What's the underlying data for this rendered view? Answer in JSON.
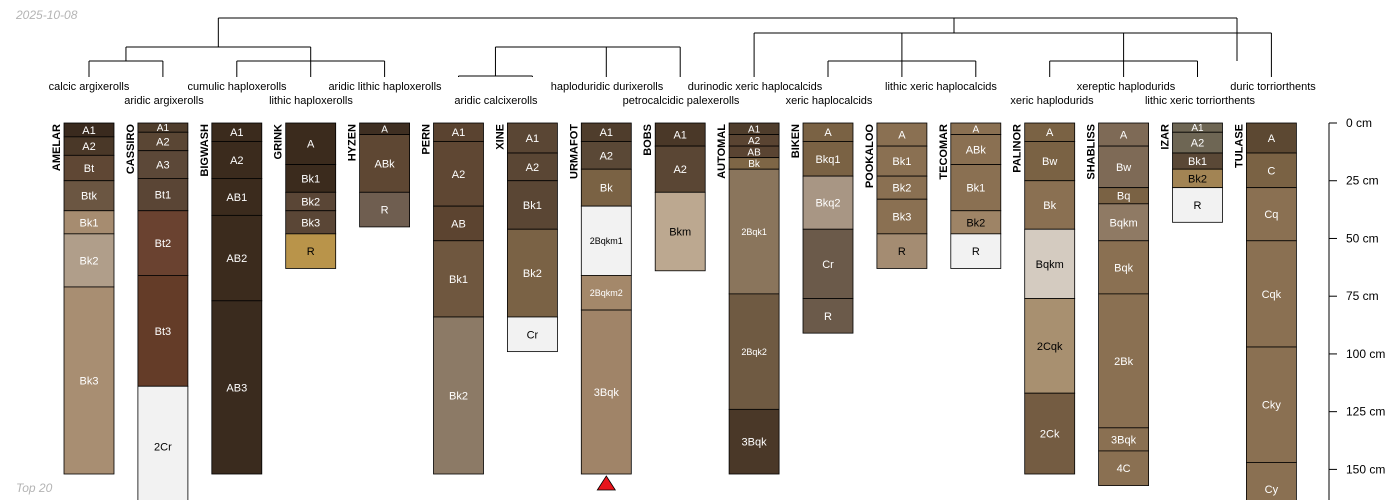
{
  "header": {
    "date": "2025-10-08"
  },
  "footer": {
    "label": "Top 20"
  },
  "depth_axis": {
    "unit": "cm",
    "range": [
      0,
      160
    ],
    "ticks": [
      {
        "value": 0,
        "label": "0 cm"
      },
      {
        "value": 25,
        "label": "25 cm"
      },
      {
        "value": 50,
        "label": "50 cm"
      },
      {
        "value": 75,
        "label": "75 cm"
      },
      {
        "value": 100,
        "label": "100 cm"
      },
      {
        "value": 125,
        "label": "125 cm"
      },
      {
        "value": 150,
        "label": "150 cm"
      }
    ]
  },
  "marker": {
    "profile": "URMAFOT",
    "shape": "triangle",
    "color": "#e8141b"
  },
  "classes": [
    {
      "label": "calcic argixerolls",
      "row": 1
    },
    {
      "label": "aridic argixerolls",
      "row": 2
    },
    {
      "label": "cumulic haploxerolls",
      "row": 1
    },
    {
      "label": "lithic haploxerolls",
      "row": 2
    },
    {
      "label": "aridic lithic haploxerolls",
      "row": 1
    },
    {
      "label": "aridic calcixerolls",
      "row": 2
    },
    {
      "label": "haploduridic durixerolls",
      "row": 1
    },
    {
      "label": "petrocalcidic palexerolls",
      "row": 2
    },
    {
      "label": "durinodic xeric haplocalcids",
      "row": 1
    },
    {
      "label": "xeric haplocalcids",
      "row": 2
    },
    {
      "label": "lithic xeric haplocalcids",
      "row": 1
    },
    {
      "label": "xeric haplodurids",
      "row": 2
    },
    {
      "label": "xereptic haplodurids",
      "row": 1
    },
    {
      "label": "lithic xeric torriorthents",
      "row": 2
    },
    {
      "label": "duric torriorthents",
      "row": 1
    }
  ],
  "profiles": [
    {
      "id": "AMELAR",
      "horizons": [
        {
          "name": "A1",
          "top": 0,
          "bottom": 6,
          "color": "#3a2a1e",
          "text": "#ffffff"
        },
        {
          "name": "A2",
          "top": 6,
          "bottom": 14,
          "color": "#4a3828",
          "text": "#ffffff"
        },
        {
          "name": "Bt",
          "top": 14,
          "bottom": 25,
          "color": "#5f4734",
          "text": "#ffffff"
        },
        {
          "name": "Btk",
          "top": 25,
          "bottom": 38,
          "color": "#6b5642",
          "text": "#ffffff"
        },
        {
          "name": "Bk1",
          "top": 38,
          "bottom": 48,
          "color": "#a68c70",
          "text": "#ffffff"
        },
        {
          "name": "Bk2",
          "top": 48,
          "bottom": 71,
          "color": "#b09e8a",
          "text": "#ffffff"
        },
        {
          "name": "Bk3",
          "top": 71,
          "bottom": 152,
          "color": "#a88e72",
          "text": "#ffffff"
        }
      ]
    },
    {
      "id": "CASSIRO",
      "horizons": [
        {
          "name": "A1",
          "top": 0,
          "bottom": 4,
          "color": "#4f3d2c",
          "text": "#ffffff"
        },
        {
          "name": "A2",
          "top": 4,
          "bottom": 12,
          "color": "#5a4634",
          "text": "#ffffff"
        },
        {
          "name": "A3",
          "top": 12,
          "bottom": 24,
          "color": "#5c4838",
          "text": "#ffffff"
        },
        {
          "name": "Bt1",
          "top": 24,
          "bottom": 38,
          "color": "#5a4535",
          "text": "#ffffff"
        },
        {
          "name": "Bt2",
          "top": 38,
          "bottom": 66,
          "color": "#6a4230",
          "text": "#ffffff"
        },
        {
          "name": "Bt3",
          "top": 66,
          "bottom": 114,
          "color": "#643c28",
          "text": "#ffffff"
        },
        {
          "name": "2Cr",
          "top": 114,
          "bottom": 166,
          "color": "#f2f2f2",
          "text": "#000000"
        }
      ]
    },
    {
      "id": "BIGWASH",
      "horizons": [
        {
          "name": "A1",
          "top": 0,
          "bottom": 8,
          "color": "#3b2b1d",
          "text": "#ffffff"
        },
        {
          "name": "A2",
          "top": 8,
          "bottom": 24,
          "color": "#3b2b1d",
          "text": "#ffffff"
        },
        {
          "name": "AB1",
          "top": 24,
          "bottom": 40,
          "color": "#3b2b1d",
          "text": "#ffffff"
        },
        {
          "name": "AB2",
          "top": 40,
          "bottom": 77,
          "color": "#3b2b1d",
          "text": "#ffffff"
        },
        {
          "name": "AB3",
          "top": 77,
          "bottom": 152,
          "color": "#3a2b1e",
          "text": "#ffffff"
        }
      ]
    },
    {
      "id": "GRINK",
      "horizons": [
        {
          "name": "A",
          "top": 0,
          "bottom": 18,
          "color": "#3b2b1d",
          "text": "#ffffff"
        },
        {
          "name": "Bk1",
          "top": 18,
          "bottom": 30,
          "color": "#3b2b1d",
          "text": "#ffffff"
        },
        {
          "name": "Bk2",
          "top": 30,
          "bottom": 38,
          "color": "#5a4636",
          "text": "#ffffff"
        },
        {
          "name": "Bk3",
          "top": 38,
          "bottom": 48,
          "color": "#5a4636",
          "text": "#ffffff"
        },
        {
          "name": "R",
          "top": 48,
          "bottom": 63,
          "color": "#b9944a",
          "text": "#000000"
        }
      ]
    },
    {
      "id": "HYZEN",
      "horizons": [
        {
          "name": "A",
          "top": 0,
          "bottom": 5,
          "color": "#3f2f22",
          "text": "#ffffff"
        },
        {
          "name": "ABk",
          "top": 5,
          "bottom": 30,
          "color": "#5e4733",
          "text": "#ffffff"
        },
        {
          "name": "R",
          "top": 30,
          "bottom": 45,
          "color": "#6f5e50",
          "text": "#ffffff"
        }
      ]
    },
    {
      "id": "PERN",
      "horizons": [
        {
          "name": "A1",
          "top": 0,
          "bottom": 8,
          "color": "#5a4330",
          "text": "#ffffff"
        },
        {
          "name": "A2",
          "top": 8,
          "bottom": 36,
          "color": "#5f4733",
          "text": "#ffffff"
        },
        {
          "name": "AB",
          "top": 36,
          "bottom": 51,
          "color": "#5c4430",
          "text": "#ffffff"
        },
        {
          "name": "Bk1",
          "top": 51,
          "bottom": 84,
          "color": "#6f573f",
          "text": "#ffffff"
        },
        {
          "name": "Bk2",
          "top": 84,
          "bottom": 152,
          "color": "#8c7a66",
          "text": "#ffffff"
        }
      ]
    },
    {
      "id": "XINE",
      "horizons": [
        {
          "name": "A1",
          "top": 0,
          "bottom": 13,
          "color": "#5a4634",
          "text": "#ffffff"
        },
        {
          "name": "A2",
          "top": 13,
          "bottom": 25,
          "color": "#5a4634",
          "text": "#ffffff"
        },
        {
          "name": "Bk1",
          "top": 25,
          "bottom": 46,
          "color": "#5a4634",
          "text": "#ffffff"
        },
        {
          "name": "Bk2",
          "top": 46,
          "bottom": 84,
          "color": "#7a6245",
          "text": "#ffffff"
        },
        {
          "name": "Cr",
          "top": 84,
          "bottom": 99,
          "color": "#f2f2f2",
          "text": "#000000"
        }
      ]
    },
    {
      "id": "URMAFOT",
      "horizons": [
        {
          "name": "A1",
          "top": 0,
          "bottom": 8,
          "color": "#4f3d2c",
          "text": "#ffffff"
        },
        {
          "name": "A2",
          "top": 8,
          "bottom": 20,
          "color": "#5a4836",
          "text": "#ffffff"
        },
        {
          "name": "Bk",
          "top": 20,
          "bottom": 36,
          "color": "#7a6244",
          "text": "#ffffff"
        },
        {
          "name": "2Bqkm1",
          "top": 36,
          "bottom": 66,
          "color": "#f2f2f2",
          "text": "#000000"
        },
        {
          "name": "2Bqkm2",
          "top": 66,
          "bottom": 81,
          "color": "#a4886a",
          "text": "#ffffff"
        },
        {
          "name": "3Bqk",
          "top": 81,
          "bottom": 152,
          "color": "#a08468",
          "text": "#ffffff"
        }
      ]
    },
    {
      "id": "BOBS",
      "horizons": [
        {
          "name": "A1",
          "top": 0,
          "bottom": 10,
          "color": "#4a3828",
          "text": "#ffffff"
        },
        {
          "name": "A2",
          "top": 10,
          "bottom": 30,
          "color": "#5a4634",
          "text": "#ffffff"
        },
        {
          "name": "Bkm",
          "top": 30,
          "bottom": 64,
          "color": "#bca890",
          "text": "#000000"
        }
      ]
    },
    {
      "id": "AUTOMAL",
      "horizons": [
        {
          "name": "A1",
          "top": 0,
          "bottom": 5,
          "color": "#4f3d2c",
          "text": "#ffffff"
        },
        {
          "name": "A2",
          "top": 5,
          "bottom": 10,
          "color": "#5a4432",
          "text": "#ffffff"
        },
        {
          "name": "AB",
          "top": 10,
          "bottom": 15,
          "color": "#5a4432",
          "text": "#ffffff"
        },
        {
          "name": "Bk",
          "top": 15,
          "bottom": 20,
          "color": "#7e6646",
          "text": "#ffffff"
        },
        {
          "name": "2Bqk1",
          "top": 20,
          "bottom": 74,
          "color": "#8a755c",
          "text": "#ffffff"
        },
        {
          "name": "2Bqk2",
          "top": 74,
          "bottom": 124,
          "color": "#6f5a42",
          "text": "#ffffff"
        },
        {
          "name": "3Bqk",
          "top": 124,
          "bottom": 152,
          "color": "#4a3828",
          "text": "#ffffff"
        }
      ]
    },
    {
      "id": "BIKEN",
      "horizons": [
        {
          "name": "A",
          "top": 0,
          "bottom": 8,
          "color": "#7a6244",
          "text": "#ffffff"
        },
        {
          "name": "Bkq1",
          "top": 8,
          "bottom": 23,
          "color": "#7a6244",
          "text": "#ffffff"
        },
        {
          "name": "Bkq2",
          "top": 23,
          "bottom": 46,
          "color": "#a89684",
          "text": "#ffffff"
        },
        {
          "name": "Cr",
          "top": 46,
          "bottom": 76,
          "color": "#6b5a4a",
          "text": "#ffffff"
        },
        {
          "name": "R",
          "top": 76,
          "bottom": 91,
          "color": "#6b5a4a",
          "text": "#ffffff"
        }
      ]
    },
    {
      "id": "POOKALOO",
      "horizons": [
        {
          "name": "A",
          "top": 0,
          "bottom": 10,
          "color": "#8a7052",
          "text": "#ffffff"
        },
        {
          "name": "Bk1",
          "top": 10,
          "bottom": 23,
          "color": "#8a7052",
          "text": "#ffffff"
        },
        {
          "name": "Bk2",
          "top": 23,
          "bottom": 33,
          "color": "#8a7052",
          "text": "#ffffff"
        },
        {
          "name": "Bk3",
          "top": 33,
          "bottom": 48,
          "color": "#8a7052",
          "text": "#ffffff"
        },
        {
          "name": "R",
          "top": 48,
          "bottom": 63,
          "color": "#a48c72",
          "text": "#000000"
        }
      ]
    },
    {
      "id": "TECOMAR",
      "horizons": [
        {
          "name": "A",
          "top": 0,
          "bottom": 5,
          "color": "#8a7052",
          "text": "#ffffff"
        },
        {
          "name": "ABk",
          "top": 5,
          "bottom": 18,
          "color": "#8a7052",
          "text": "#ffffff"
        },
        {
          "name": "Bk1",
          "top": 18,
          "bottom": 38,
          "color": "#8a7052",
          "text": "#ffffff"
        },
        {
          "name": "Bk2",
          "top": 38,
          "bottom": 48,
          "color": "#9e8466",
          "text": "#000000"
        },
        {
          "name": "R",
          "top": 48,
          "bottom": 63,
          "color": "#f2f2f2",
          "text": "#000000"
        }
      ]
    },
    {
      "id": "PALINOR",
      "horizons": [
        {
          "name": "A",
          "top": 0,
          "bottom": 8,
          "color": "#7a6244",
          "text": "#ffffff"
        },
        {
          "name": "Bw",
          "top": 8,
          "bottom": 25,
          "color": "#7a6244",
          "text": "#ffffff"
        },
        {
          "name": "Bk",
          "top": 25,
          "bottom": 46,
          "color": "#8a7052",
          "text": "#ffffff"
        },
        {
          "name": "Bqkm",
          "top": 46,
          "bottom": 76,
          "color": "#d4cbc0",
          "text": "#000000"
        },
        {
          "name": "2Cqk",
          "top": 76,
          "bottom": 117,
          "color": "#a89070",
          "text": "#000000"
        },
        {
          "name": "2Ck",
          "top": 117,
          "bottom": 152,
          "color": "#745c42",
          "text": "#ffffff"
        }
      ]
    },
    {
      "id": "SHABLISS",
      "horizons": [
        {
          "name": "A",
          "top": 0,
          "bottom": 10,
          "color": "#7e6a56",
          "text": "#ffffff"
        },
        {
          "name": "Bw",
          "top": 10,
          "bottom": 28,
          "color": "#7e6a56",
          "text": "#ffffff"
        },
        {
          "name": "Bq",
          "top": 28,
          "bottom": 35,
          "color": "#7a6244",
          "text": "#ffffff"
        },
        {
          "name": "Bqkm",
          "top": 35,
          "bottom": 51,
          "color": "#8f7a64",
          "text": "#ffffff"
        },
        {
          "name": "Bqk",
          "top": 51,
          "bottom": 74,
          "color": "#8a7052",
          "text": "#ffffff"
        },
        {
          "name": "2Bk",
          "top": 74,
          "bottom": 132,
          "color": "#8a7052",
          "text": "#ffffff"
        },
        {
          "name": "3Bqk",
          "top": 132,
          "bottom": 142,
          "color": "#8a7052",
          "text": "#ffffff"
        },
        {
          "name": "4C",
          "top": 142,
          "bottom": 157,
          "color": "#8a7052",
          "text": "#ffffff"
        }
      ]
    },
    {
      "id": "IZAR",
      "horizons": [
        {
          "name": "A1",
          "top": 0,
          "bottom": 4,
          "color": "#6e6654",
          "text": "#ffffff"
        },
        {
          "name": "A2",
          "top": 4,
          "bottom": 13,
          "color": "#6e6654",
          "text": "#ffffff"
        },
        {
          "name": "Bk1",
          "top": 13,
          "bottom": 20,
          "color": "#5a4836",
          "text": "#ffffff"
        },
        {
          "name": "Bk2",
          "top": 20,
          "bottom": 28,
          "color": "#a28454",
          "text": "#000000"
        },
        {
          "name": "R",
          "top": 28,
          "bottom": 43,
          "color": "#f2f2f2",
          "text": "#000000"
        }
      ]
    },
    {
      "id": "TULASE",
      "horizons": [
        {
          "name": "A",
          "top": 0,
          "bottom": 13,
          "color": "#5c4832",
          "text": "#ffffff"
        },
        {
          "name": "C",
          "top": 13,
          "bottom": 28,
          "color": "#7a6244",
          "text": "#ffffff"
        },
        {
          "name": "Cq",
          "top": 28,
          "bottom": 51,
          "color": "#8a7052",
          "text": "#ffffff"
        },
        {
          "name": "Cqk",
          "top": 51,
          "bottom": 97,
          "color": "#8a7052",
          "text": "#ffffff"
        },
        {
          "name": "Cky",
          "top": 97,
          "bottom": 147,
          "color": "#8a7052",
          "text": "#ffffff"
        },
        {
          "name": "Cy",
          "top": 147,
          "bottom": 170,
          "color": "#8a7052",
          "text": "#ffffff"
        }
      ]
    }
  ]
}
